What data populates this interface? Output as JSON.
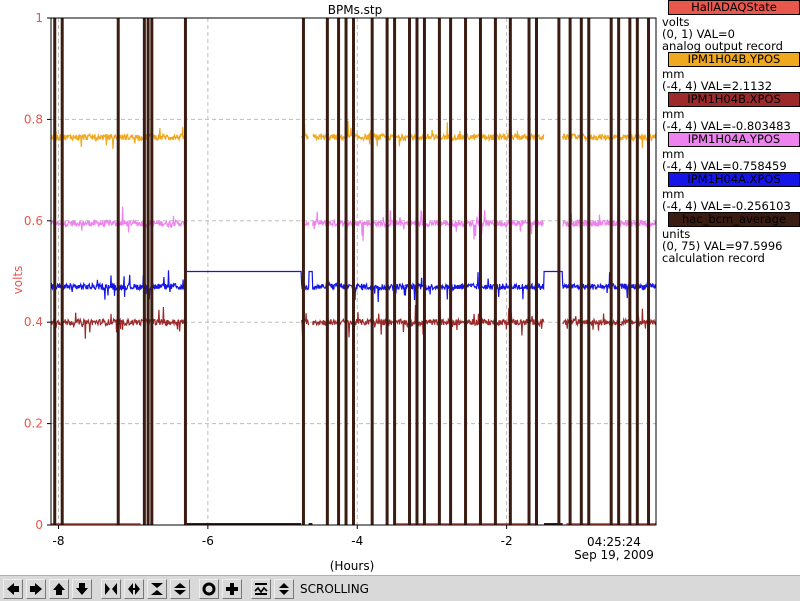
{
  "chart_data": {
    "type": "line",
    "title": "BPMs.stp",
    "ylabel": "volts",
    "xlabel": "(Hours)",
    "xlim": [
      -8.1,
      0
    ],
    "ylim": [
      0,
      1
    ],
    "x_ticks": [
      -8,
      -6,
      -4,
      -2
    ],
    "x_tick_labels": [
      "-8",
      "-6",
      "-4",
      "-2"
    ],
    "y_ticks": [
      0,
      0.2,
      0.4,
      0.6,
      0.8,
      1
    ],
    "y_tick_labels": [
      "0",
      "0.2",
      "0.4",
      "0.6",
      "0.8",
      "1"
    ],
    "end_time": "04:25:24",
    "end_date": "Sep 19, 2009",
    "grid": true,
    "beam_off_intervals": [
      [
        -6.3,
        -4.75
      ],
      [
        -4.65,
        -4.6
      ],
      [
        -1.5,
        -1.25
      ]
    ],
    "series": [
      {
        "name": "HallADAQState",
        "units": "volts",
        "range": "(0, 1)",
        "value": "VAL=0",
        "note": "analog output record",
        "color": "#e8564c",
        "level": 0.0
      },
      {
        "name": "IPM1H04B.YPOS",
        "units": "mm",
        "range": "(-4, 4)",
        "value": "VAL=2.1132",
        "color": "#f0a81e",
        "level": 0.765
      },
      {
        "name": "IPM1H04B.XPOS",
        "units": "mm",
        "range": "(-4, 4)",
        "value": "VAL=-0.803483",
        "color": "#9c2a2a",
        "level": 0.4
      },
      {
        "name": "IPM1H04A.YPOS",
        "units": "mm",
        "range": "(-4, 4)",
        "value": "VAL=0.758459",
        "color": "#ee82ee",
        "level": 0.595
      },
      {
        "name": "IPM1H04A.XPOS",
        "units": "mm",
        "range": "(-4, 4)",
        "value": "VAL=-0.256103",
        "color": "#1515e8",
        "level": 0.47,
        "off_level": 0.5
      },
      {
        "name": "hac_bcm_average",
        "units": "units",
        "range": "(0, 75)",
        "value": "VAL=97.5996",
        "note": "calculation record",
        "color": "#3b1c12"
      }
    ],
    "bcm_spikes": [
      -8.05,
      -7.95,
      -7.2,
      -6.85,
      -6.8,
      -6.75,
      -6.3,
      -4.72,
      -4.4,
      -4.25,
      -4.15,
      -4.05,
      -3.8,
      -3.6,
      -3.5,
      -3.3,
      -3.2,
      -3.1,
      -2.9,
      -2.75,
      -2.55,
      -2.35,
      -2.15,
      -1.95,
      -1.7,
      -1.6,
      -1.3,
      -1.15,
      -1.0,
      -0.9,
      -0.6,
      -0.5,
      -0.35,
      -0.25,
      -0.1
    ]
  },
  "toolbar": {
    "mode_label": "SCROLLING",
    "buttons": [
      "pan-left",
      "pan-right",
      "pan-up",
      "pan-down",
      "zoom-in-x",
      "zoom-out-x",
      "zoom-in-y",
      "zoom-out-y",
      "zoom-reset",
      "add-plot",
      "toggle-scroll"
    ]
  }
}
